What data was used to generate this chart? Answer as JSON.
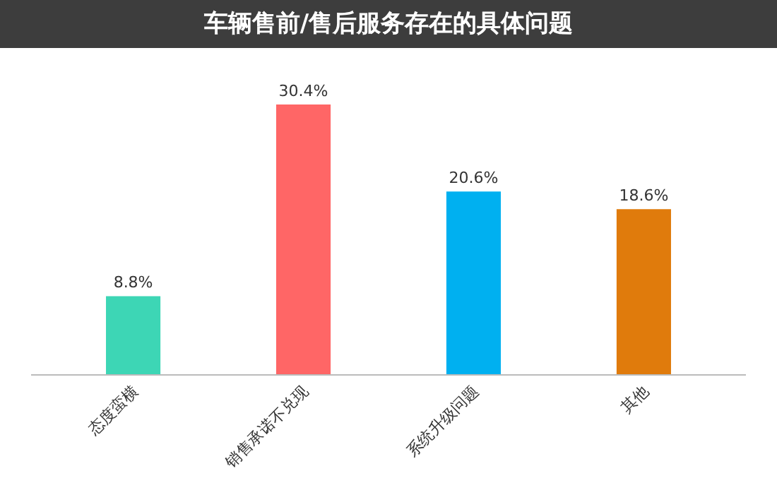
{
  "chart_data": {
    "type": "bar",
    "title": "车辆售前/售后服务存在的具体问题",
    "categories": [
      "态度蛮横",
      "销售承诺不兑现",
      "系统升级问题",
      "其他"
    ],
    "values": [
      8.8,
      30.4,
      20.6,
      18.6
    ],
    "colors": [
      "#3dd6b5",
      "#ff6666",
      "#00b0f0",
      "#e07b0c"
    ],
    "value_labels": [
      "8.8%",
      "30.4%",
      "20.6%",
      "18.6%"
    ],
    "grid": false,
    "legend": false
  }
}
